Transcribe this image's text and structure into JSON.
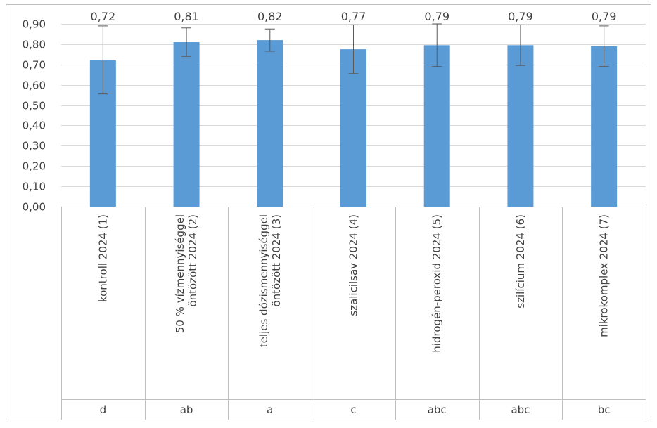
{
  "chart_data": {
    "type": "bar",
    "title": "",
    "xlabel": "",
    "ylabel": "",
    "ylim": [
      0,
      0.9
    ],
    "yticks": [
      "0,00",
      "0,10",
      "0,20",
      "0,30",
      "0,40",
      "0,50",
      "0,60",
      "0,70",
      "0,80",
      "0,90"
    ],
    "grid": true,
    "legend": "none",
    "categories": [
      "kontroll 2024 (1)",
      "50 % vízmennyiséggel öntözött 2024 (2)",
      "teljes dózismennyiséggel öntözött 2024 (3)",
      "szalicilsav 2024 (4)",
      "hidrogén-peroxid 2024 (5)",
      "szilícium 2024 (6)",
      "mikrokomplex 2024 (7)"
    ],
    "category_lines": [
      [
        "kontroll 2024 (1)"
      ],
      [
        "50 % vízmennyiséggel",
        "öntözött 2024 (2)"
      ],
      [
        "teljes dózismennyiséggel",
        "öntözött 2024 (3)"
      ],
      [
        "szalicilsav 2024 (4)"
      ],
      [
        "hidrogén-peroxid 2024 (5)"
      ],
      [
        "szilícium 2024 (6)"
      ],
      [
        "mikrokomplex 2024 (7)"
      ]
    ],
    "values": [
      0.72,
      0.81,
      0.82,
      0.775,
      0.795,
      0.795,
      0.79
    ],
    "data_labels": [
      "0,72",
      "0,81",
      "0,82",
      "0,77",
      "0,79",
      "0,79",
      "0,79"
    ],
    "error_low": [
      0.555,
      0.74,
      0.765,
      0.655,
      0.69,
      0.695,
      0.69
    ],
    "error_high": [
      0.89,
      0.88,
      0.875,
      0.895,
      0.9,
      0.895,
      0.89
    ],
    "significance_letters": [
      "d",
      "ab",
      "a",
      "c",
      "abc",
      "abc",
      "bc"
    ],
    "colors": {
      "bar": "#5B9BD5",
      "grid": "#D9D9D9",
      "axis": "#BFBFBF",
      "text": "#404040",
      "error": "#595959"
    }
  }
}
